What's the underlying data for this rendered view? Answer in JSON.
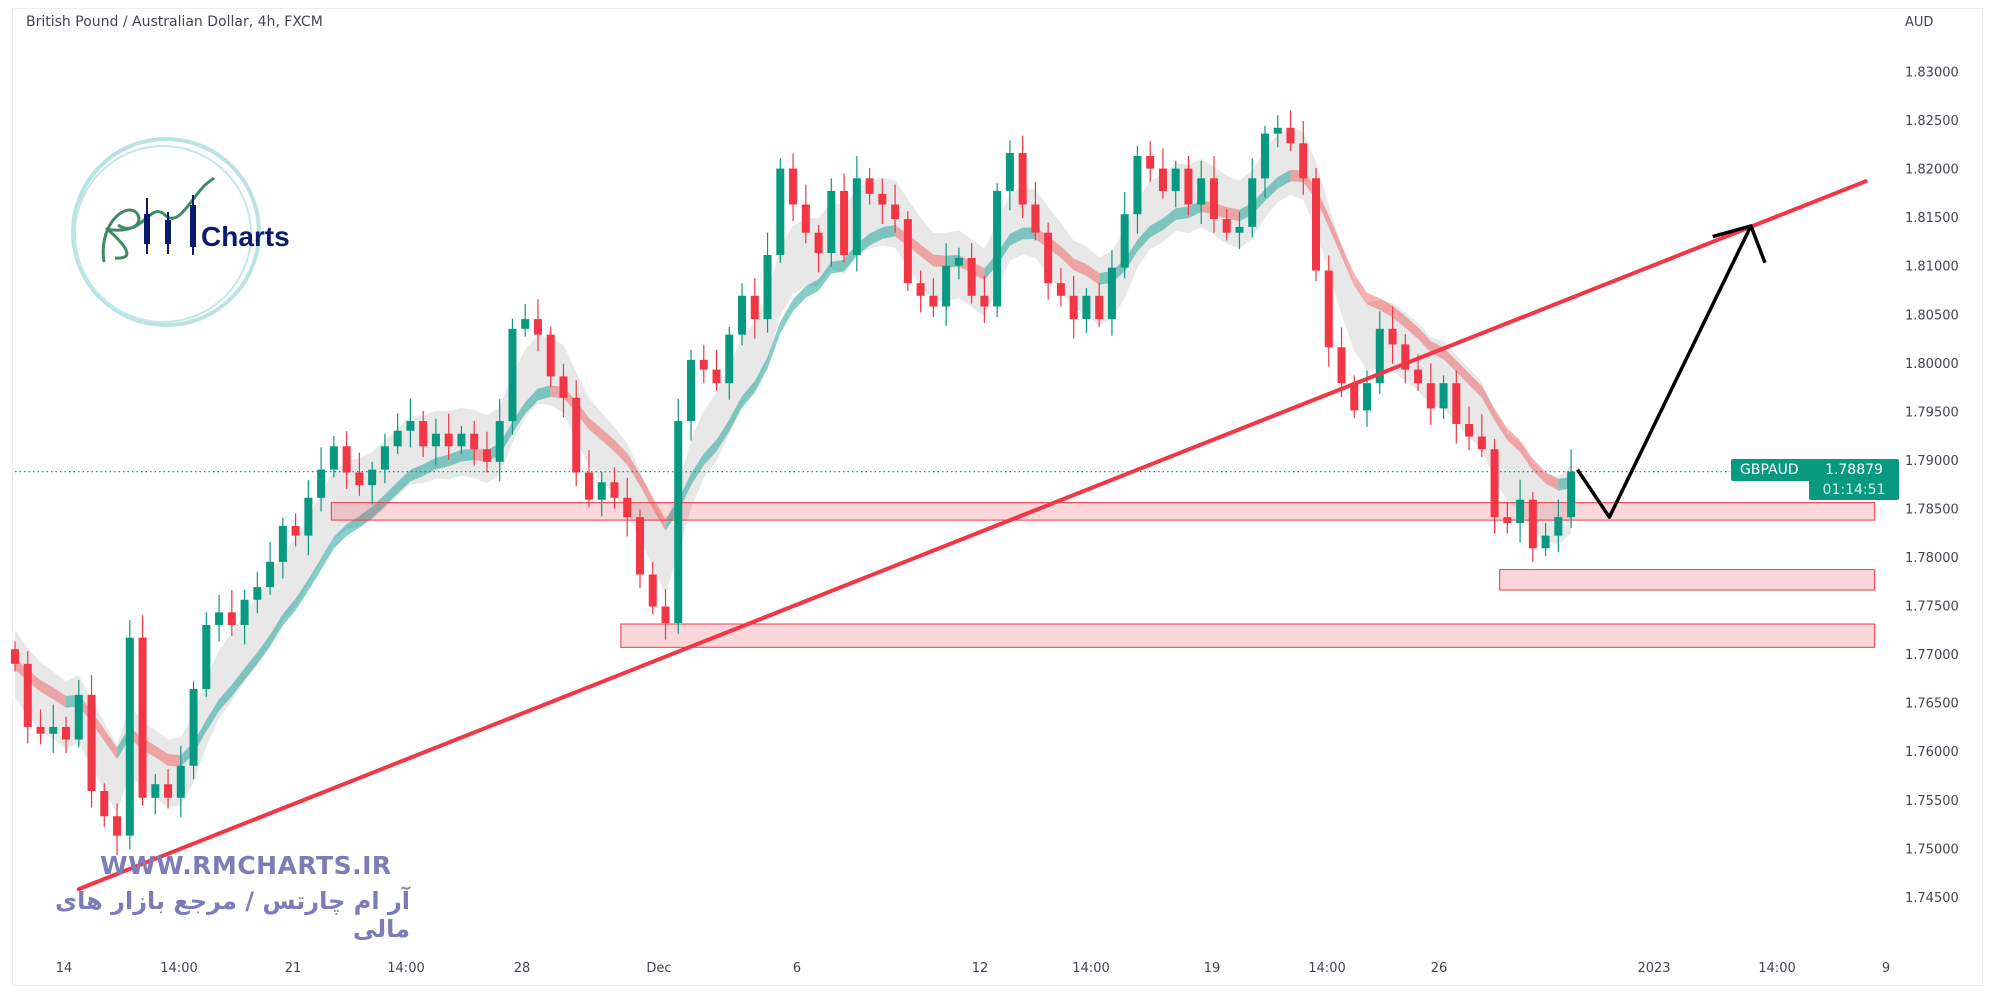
{
  "header": {
    "title": "British Pound / Australian Dollar, 4h, FXCM"
  },
  "price_tag": {
    "symbol": "GBPAUD",
    "price": "1.78879",
    "countdown": "01:14:51"
  },
  "logo": {
    "text": "Charts",
    "monogram": "RM"
  },
  "watermark": {
    "url": "WWW.RMCHARTS.IR",
    "tagline": "آر ام چارتس / مرجع بازار های مالی"
  },
  "colors": {
    "up": "#089981",
    "down": "#f23645",
    "trendline": "#f23645",
    "zone_fill": "rgba(242,54,69,0.2)",
    "projection": "#000000",
    "ribbon_up": "rgba(38,166,154,0.55)",
    "ribbon_down": "rgba(239,83,80,0.45)",
    "envelope": "rgba(190,190,190,0.35)"
  },
  "chart_data": {
    "type": "candlestick",
    "title": "British Pound / Australian Dollar, 4h, FXCM",
    "y_unit": "AUD",
    "ylim": [
      1.7425,
      1.8325
    ],
    "y_ticks": [
      "1.83000",
      "1.82500",
      "1.82000",
      "1.81500",
      "1.81000",
      "1.80500",
      "1.80000",
      "1.79500",
      "1.79000",
      "1.78500",
      "1.78000",
      "1.77500",
      "1.77000",
      "1.76500",
      "1.76000",
      "1.75500",
      "1.75000",
      "1.74500"
    ],
    "x_ticks": [
      "14",
      "14:00",
      "21",
      "14:00",
      "28",
      "Dec",
      "6",
      "12",
      "14:00",
      "19",
      "14:00",
      "26",
      "2023",
      "14:00",
      "9"
    ],
    "closes": [
      1.769,
      1.7625,
      1.7618,
      1.7625,
      1.7612,
      1.7658,
      1.7559,
      1.7533,
      1.7513,
      1.7717,
      1.7552,
      1.7566,
      1.7552,
      1.7585,
      1.7664,
      1.773,
      1.7743,
      1.773,
      1.7756,
      1.7769,
      1.7795,
      1.7832,
      1.7822,
      1.7861,
      1.789,
      1.7914,
      1.7887,
      1.7874,
      1.789,
      1.7914,
      1.793,
      1.794,
      1.7914,
      1.7927,
      1.7914,
      1.7927,
      1.7911,
      1.7898,
      1.794,
      1.8035,
      1.8045,
      1.8029,
      1.7986,
      1.7964,
      1.7887,
      1.7859,
      1.7877,
      1.7861,
      1.7841,
      1.7782,
      1.7749,
      1.7732,
      1.794,
      1.8003,
      1.7993,
      1.7979,
      1.8029,
      1.8069,
      1.8045,
      1.8111,
      1.82,
      1.8163,
      1.8134,
      1.8113,
      1.8177,
      1.8111,
      1.819,
      1.8174,
      1.8163,
      1.8148,
      1.8082,
      1.8069,
      1.8058,
      1.81,
      1.8108,
      1.8069,
      1.8058,
      1.8177,
      1.8216,
      1.8163,
      1.8134,
      1.8082,
      1.8069,
      1.8045,
      1.8069,
      1.8045,
      1.8098,
      1.8153,
      1.8213,
      1.82,
      1.8177,
      1.82,
      1.8163,
      1.819,
      1.8148,
      1.8134,
      1.814,
      1.819,
      1.8236,
      1.8242,
      1.8226,
      1.819,
      1.8095,
      1.8016,
      1.7979,
      1.7951,
      1.7979,
      1.8035,
      1.8019,
      1.7993,
      1.7979,
      1.7953,
      1.7979,
      1.7937,
      1.7924,
      1.7911,
      1.7841,
      1.7835,
      1.7859,
      1.7809,
      1.7822,
      1.7841,
      1.78879
    ],
    "last_price": 1.78879,
    "annotations": {
      "trendline": {
        "from": {
          "bar": 5,
          "price": 1.7458
        },
        "to": {
          "bar": 145.1,
          "price": 1.8187
        }
      },
      "zones": [
        {
          "bar_from": 24.8,
          "bar_to": 145.8,
          "price_top": 1.7856,
          "price_bottom": 1.7838
        },
        {
          "bar_from": 116.4,
          "bar_to": 145.8,
          "price_top": 1.7787,
          "price_bottom": 1.7766
        },
        {
          "bar_from": 47.5,
          "bar_to": 145.8,
          "price_top": 1.7731,
          "price_bottom": 1.7707
        }
      ],
      "projection": [
        {
          "bar": 122.5,
          "price": 1.789
        },
        {
          "bar": 125.0,
          "price": 1.7841
        },
        {
          "bar": 136.1,
          "price": 1.8141
        }
      ],
      "projection_head": [
        {
          "bar": 133.1,
          "price": 1.813
        },
        {
          "bar": 136.1,
          "price": 1.8141
        },
        {
          "bar": 137.2,
          "price": 1.8103
        }
      ]
    }
  }
}
